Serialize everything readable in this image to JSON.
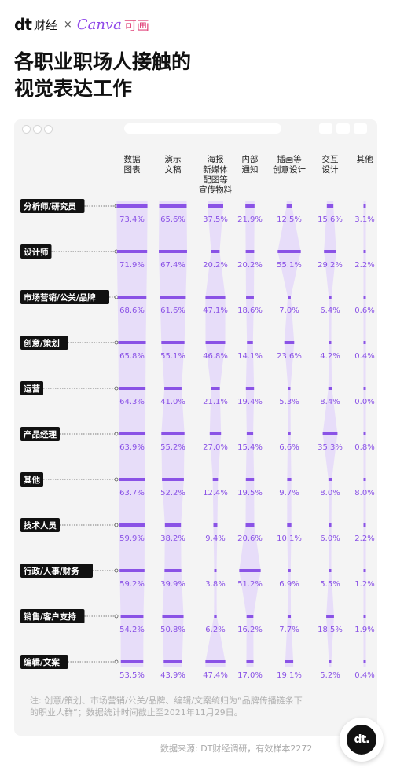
{
  "header": {
    "brand_dt": "dt",
    "brand_name": "财经",
    "brand_times": "×",
    "brand_canva": "Canva",
    "brand_canva_cn": "可画",
    "title_line1": "各职业职场人接触的",
    "title_line2": "视觉表达工作"
  },
  "footer": {
    "note_line1": "注: 创意/策划、市场营销/公关/品牌、编辑/文案统归为“品牌传播链条下",
    "note_line2": "的职业人群”；数据统计时间截止至2021年11月29日。",
    "source": "数据来源: DT财经调研，有效样本2272",
    "badge": "dt."
  },
  "colors": {
    "accent": "#8a52e6",
    "shape": "#e7ddf9",
    "label_bg": "#111111",
    "value_text": "#8a52e6",
    "card_bg": "#f4f4f4"
  },
  "chart_data": {
    "type": "table",
    "columns": [
      [
        "数据",
        "图表"
      ],
      [
        "演示",
        "文稿"
      ],
      [
        "海报",
        "新媒体",
        "配图等",
        "宣传物料"
      ],
      [
        "内部",
        "通知"
      ],
      [
        "插画等",
        "创意设计"
      ],
      [
        "交互",
        "设计"
      ],
      [
        "其他"
      ]
    ],
    "rows": [
      {
        "label": "分析师/研究员",
        "values": [
          "73.4%",
          "65.6%",
          "37.5%",
          "21.9%",
          "12.5%",
          "15.6%",
          "3.1%"
        ]
      },
      {
        "label": "设计师",
        "values": [
          "71.9%",
          "67.4%",
          "20.2%",
          "20.2%",
          "55.1%",
          "29.2%",
          "2.2%"
        ]
      },
      {
        "label": "市场营销/公关/品牌",
        "values": [
          "68.6%",
          "61.6%",
          "47.1%",
          "18.6%",
          "7.0%",
          "6.4%",
          "0.6%"
        ]
      },
      {
        "label": "创意/策划",
        "values": [
          "65.8%",
          "55.1%",
          "46.8%",
          "14.1%",
          "23.6%",
          "4.2%",
          "0.4%"
        ]
      },
      {
        "label": "运营",
        "values": [
          "64.3%",
          "41.0%",
          "21.1%",
          "19.4%",
          "5.3%",
          "8.4%",
          "0.0%"
        ]
      },
      {
        "label": "产品经理",
        "values": [
          "63.9%",
          "55.2%",
          "27.0%",
          "15.4%",
          "6.6%",
          "35.3%",
          "0.8%"
        ]
      },
      {
        "label": "其他",
        "values": [
          "63.7%",
          "52.2%",
          "12.4%",
          "19.5%",
          "9.7%",
          "8.0%",
          "8.0%"
        ]
      },
      {
        "label": "技术人员",
        "values": [
          "59.9%",
          "38.2%",
          "9.4%",
          "20.6%",
          "10.1%",
          "6.0%",
          "2.2%"
        ]
      },
      {
        "label": "行政/人事/财务",
        "values": [
          "59.2%",
          "39.9%",
          "3.8%",
          "51.2%",
          "6.9%",
          "5.5%",
          "1.2%"
        ]
      },
      {
        "label": "销售/客户支持",
        "values": [
          "54.2%",
          "50.8%",
          "6.2%",
          "16.2%",
          "7.7%",
          "18.5%",
          "1.9%"
        ]
      },
      {
        "label": "编辑/文案",
        "values": [
          "53.5%",
          "43.9%",
          "47.4%",
          "17.0%",
          "19.1%",
          "5.2%",
          "0.4%"
        ]
      }
    ]
  }
}
